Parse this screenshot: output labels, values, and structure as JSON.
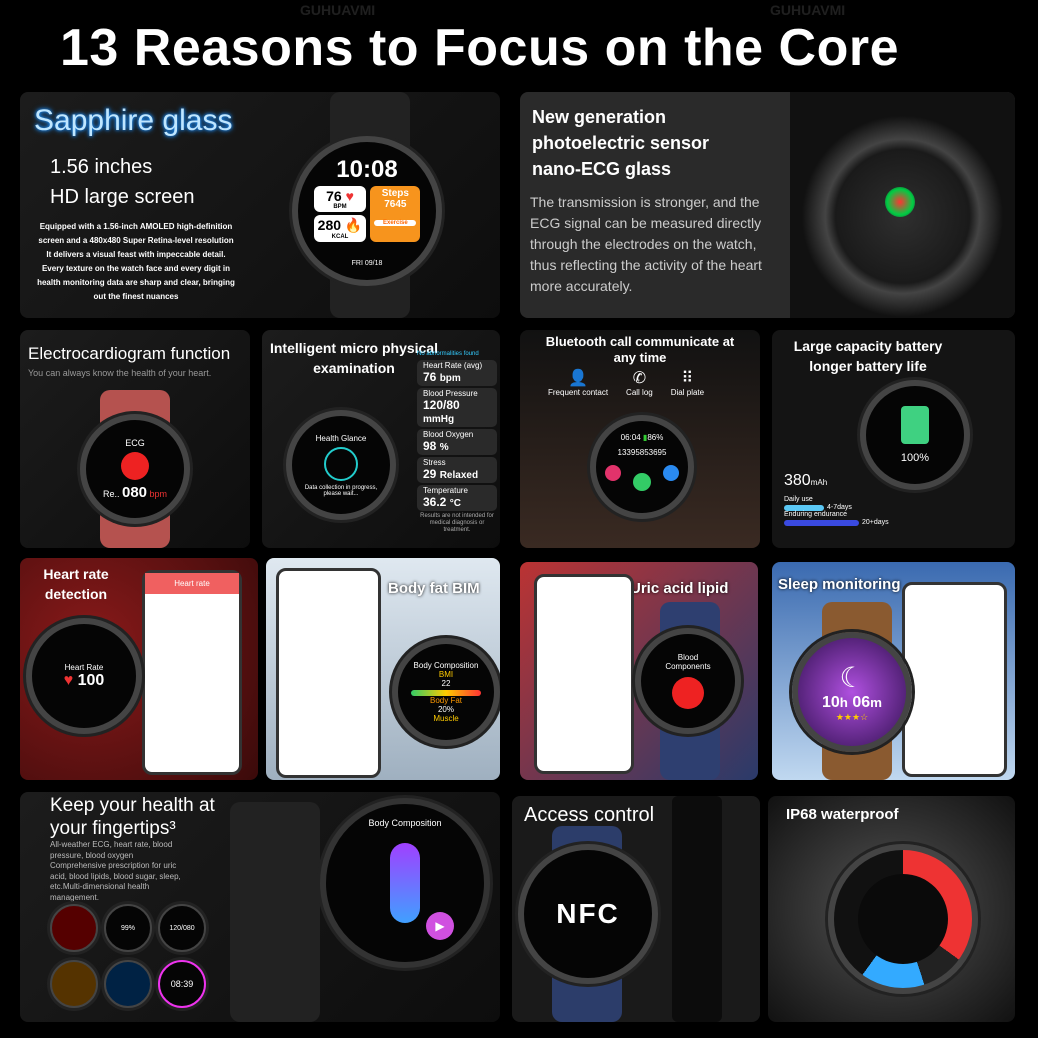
{
  "title": "13 Reasons to Focus on the Core",
  "watermark": "GUHUAVMI",
  "sapphire": {
    "heading": "Sapphire glass",
    "line1": "1.56 inches",
    "line2": "HD large screen",
    "desc": "Equipped with a 1.56-inch AMOLED high-definition screen and a 480x480 Super Retina-level resolution It delivers a visual feast with impeccable detail. Every texture on the watch face and every digit in health monitoring data are sharp and clear, bringing out the finest nuances",
    "watch": {
      "time": "10:08",
      "bpm": "76",
      "bpm_unit": "BPM",
      "steps_label": "Steps",
      "steps": "7645",
      "kcal": "280",
      "kcal_unit": "KCAL",
      "exercise": "Exercise",
      "date": "FRI  09/18"
    }
  },
  "sensor": {
    "heading": "New generation photoelectric sensor nano-ECG glass",
    "desc": "The transmission is stronger, and the ECG signal can be measured directly through the electrodes on the watch, thus reflecting the activity of the heart more accurately."
  },
  "ecg": {
    "heading": "Electrocardiogram function",
    "sub": "You can always know the health of your heart.",
    "label": "ECG",
    "reading_prefix": "Re..",
    "value": "080",
    "unit": "bpm"
  },
  "exam": {
    "heading": "Intelligent micro physical examination",
    "screen_title": "Health Glance",
    "screen_text": "Data collection in progress, please wait...",
    "found": "No abnormalities found",
    "cards": [
      {
        "label": "Heart Rate (avg)",
        "value": "76",
        "unit": "bpm"
      },
      {
        "label": "Blood Pressure",
        "value": "120/80",
        "unit": "mmHg"
      },
      {
        "label": "Blood Oxygen",
        "value": "98",
        "unit": "%"
      },
      {
        "label": "Stress",
        "value": "29",
        "unit": "Relaxed"
      },
      {
        "label": "Temperature",
        "value": "36.2",
        "unit": "°C"
      }
    ],
    "note": "Results are not intended for medical diagnosis or treatment."
  },
  "call": {
    "heading": "Bluetooth call communicate at any time",
    "icons": [
      {
        "icon": "contact-add-icon",
        "label": "Frequent contact"
      },
      {
        "icon": "call-log-icon",
        "label": "Call log"
      },
      {
        "icon": "dial-plate-icon",
        "label": "Dial plate"
      }
    ],
    "time": "06:04",
    "battery": "86%",
    "number": "13395853695"
  },
  "battery": {
    "heading": "Large capacity battery longer battery life",
    "capacity": "380",
    "unit": "mAh",
    "percent": "100%",
    "daily_label": "Daily use",
    "daily_value": "4-7days",
    "endurance_label": "Enduring endurance",
    "endurance_value": "20+days"
  },
  "heart": {
    "heading": "Heart rate detection",
    "phone_title": "Heart rate",
    "watch_label": "Heart Rate",
    "value": "100"
  },
  "bodyfat": {
    "heading": "Body fat BIM",
    "watch_title": "Body Composition",
    "bmi_label": "BMI",
    "bmi": "22",
    "fat_label": "Body Fat",
    "fat": "20%",
    "muscle_label": "Muscle"
  },
  "uric": {
    "heading": "Uric acid lipid",
    "watch_title": "Blood Components"
  },
  "sleep": {
    "heading": "Sleep monitoring",
    "hours": "10",
    "minutes": "06"
  },
  "fingertips": {
    "heading": "Keep your health at your fingertips³",
    "desc": "All-weather ECG, heart rate, blood pressure, blood oxygen Comprehensive prescription for uric acid, blood lipids, blood sugar, sleep, etc.Multi-dimensional health management.",
    "watch_title": "Body Composition",
    "mini": [
      "99%",
      "120/080",
      "08:39"
    ]
  },
  "access": {
    "heading": "Access control",
    "nfc": "NFC"
  },
  "waterproof": {
    "heading": "IP68 waterproof"
  }
}
